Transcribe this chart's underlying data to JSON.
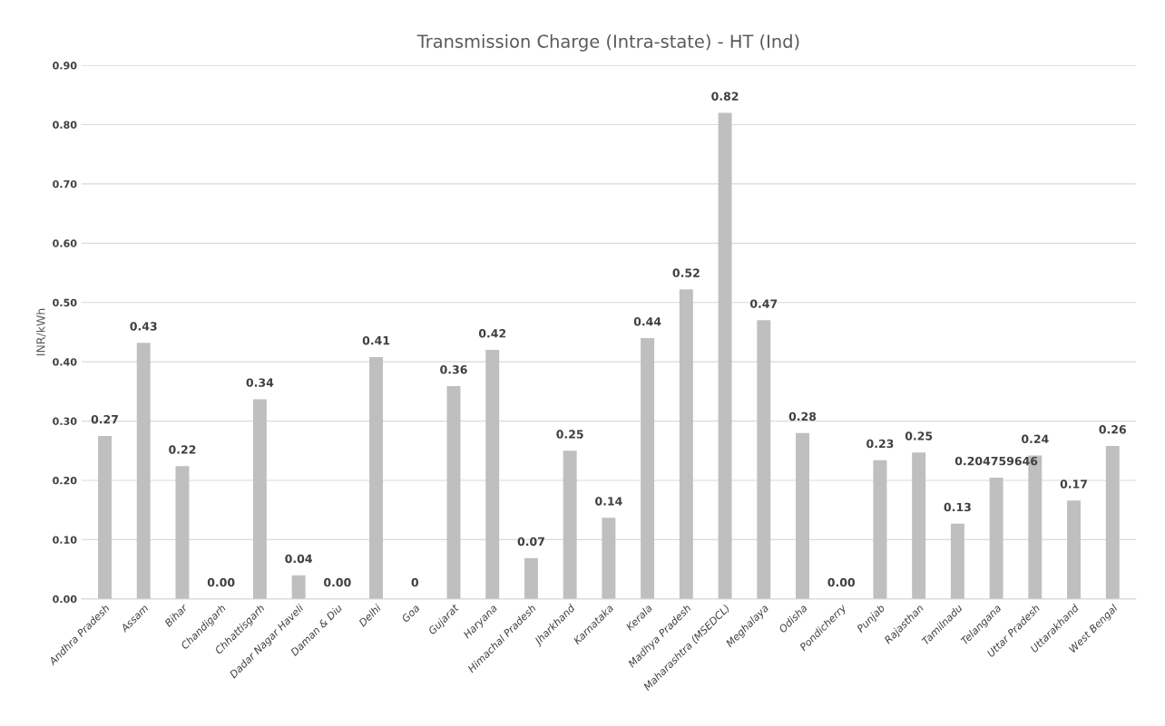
{
  "chart_data": {
    "type": "bar",
    "title": "Transmission Charge (Intra-state) - HT (Ind)",
    "ylabel": "INR/kWh",
    "categories": [
      "Andhra Pradesh",
      "Assam",
      "Bihar",
      "Chandigarh",
      "Chhattisgarh",
      "Dadar Nagar Haveli",
      "Daman & Diu",
      "Delhi",
      "Goa",
      "Gujarat",
      "Haryana",
      "Himachal Pradesh",
      "Jharkhand",
      "Karnataka",
      "Kerala",
      "Madhya Pradesh",
      "Maharashtra (MSEDCL)",
      "Meghalaya",
      "Odisha",
      "Pondicherry",
      "Punjab",
      "Rajasthan",
      "Tamilnadu",
      "Telangana",
      "Uttar Pradesh",
      "Uttarakhand",
      "West Bengal"
    ],
    "values": [
      0.275,
      0.432,
      0.224,
      0,
      0.337,
      0.04,
      0,
      0.408,
      0,
      0.359,
      0.42,
      0.069,
      0.25,
      0.137,
      0.44,
      0.522,
      0.82,
      0.47,
      0.28,
      0,
      0.234,
      0.247,
      0.127,
      0.204759646,
      0.242,
      0.166,
      0.258
    ],
    "value_labels": [
      "0.27",
      "0.43",
      "0.22",
      "0.00",
      "0.34",
      "0.04",
      "0.00",
      "0.41",
      "0",
      "0.36",
      "0.42",
      "0.07",
      "0.25",
      "0.14",
      "0.44",
      "0.52",
      "0.82",
      "0.47",
      "0.28",
      "0.00",
      "0.23",
      "0.25",
      "0.13",
      "0.204759646",
      "0.24",
      "0.17",
      "0.26"
    ],
    "color": "#bfbfbf",
    "ylim": [
      0,
      0.9
    ],
    "yticks": [
      {
        "value": 0,
        "label": "0.00"
      },
      {
        "value": 0.1,
        "label": "0.10"
      },
      {
        "value": 0.2,
        "label": "0.20"
      },
      {
        "value": 0.3,
        "label": "0.30"
      },
      {
        "value": 0.4,
        "label": "0.40"
      },
      {
        "value": 0.5,
        "label": "0.50"
      },
      {
        "value": 0.6,
        "label": "0.60"
      },
      {
        "value": 0.7,
        "label": "0.70"
      },
      {
        "value": 0.8,
        "label": "0.80"
      },
      {
        "value": 0.9,
        "label": "0.90"
      }
    ],
    "grid": "y",
    "legend": false
  }
}
